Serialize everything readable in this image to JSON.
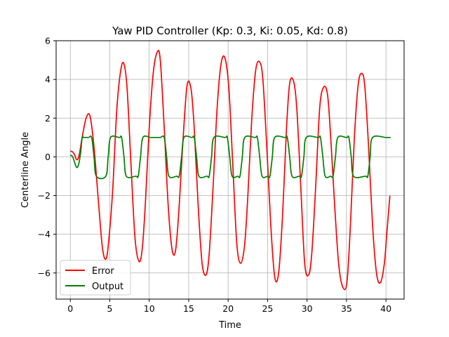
{
  "chart_data": {
    "type": "line",
    "title": "Yaw PID Controller (Kp: 0.3, Ki: 0.05, Kd: 0.8)",
    "xlabel": "Time",
    "ylabel": "Centerline Angle",
    "xlim": [
      -1.8,
      42.3
    ],
    "ylim": [
      -7.35,
      6.0
    ],
    "xticks": [
      0,
      5,
      10,
      15,
      20,
      25,
      30,
      35,
      40
    ],
    "yticks": [
      -6,
      -4,
      -2,
      0,
      2,
      4,
      6
    ],
    "xtick_labels": [
      "0",
      "5",
      "10",
      "15",
      "20",
      "25",
      "30",
      "35",
      "40"
    ],
    "ytick_labels": [
      "−6",
      "−4",
      "−2",
      "0",
      "2",
      "4",
      "6"
    ],
    "grid": true,
    "legend_position": "lower-left",
    "series": [
      {
        "name": "Error",
        "color": "#ff0000",
        "x": [
          0.0,
          0.3,
          0.55,
          0.8,
          1.1,
          1.5,
          2.0,
          2.5,
          3.0,
          3.6,
          4.1,
          4.6,
          5.05,
          5.4,
          5.9,
          6.4,
          6.8,
          7.2,
          7.7,
          8.2,
          8.7,
          9.1,
          9.5,
          10.0,
          10.5,
          11.0,
          11.4,
          11.9,
          12.4,
          12.9,
          13.35,
          13.8,
          14.3,
          14.8,
          15.3,
          15.7,
          16.2,
          16.7,
          17.2,
          17.6,
          18.1,
          18.6,
          19.1,
          19.6,
          20.1,
          20.6,
          21.1,
          21.6,
          22.1,
          22.5,
          23.0,
          23.5,
          24.0,
          24.4,
          24.9,
          25.4,
          25.9,
          26.4,
          26.9,
          27.4,
          27.8,
          28.3,
          28.7,
          29.2,
          29.7,
          30.2,
          30.6,
          31.1,
          31.6,
          32.1,
          32.6,
          33.0,
          33.5,
          34.0,
          34.5,
          35.05,
          35.5,
          36.0,
          36.5,
          37.0,
          37.35,
          37.8,
          38.3,
          38.8,
          39.3,
          39.8,
          40.1,
          40.5
        ],
        "y": [
          0.3,
          0.25,
          0.1,
          -0.15,
          0.05,
          1.0,
          2.0,
          2.1,
          0.5,
          -2.5,
          -4.8,
          -5.2,
          -3.5,
          -1.5,
          2.5,
          4.5,
          4.8,
          3.5,
          -0.5,
          -4.2,
          -5.4,
          -4.8,
          -2.5,
          1.5,
          4.3,
          5.4,
          5.0,
          1.5,
          -2.5,
          -4.8,
          -4.8,
          -2.5,
          1.0,
          3.7,
          3.5,
          1.5,
          -2.5,
          -5.5,
          -6.1,
          -5.0,
          -1.5,
          2.5,
          4.8,
          5.1,
          3.5,
          -0.5,
          -4.5,
          -5.5,
          -4.5,
          -2.0,
          2.0,
          4.5,
          4.9,
          4.0,
          0.5,
          -3.5,
          -6.2,
          -6.0,
          -3.0,
          1.5,
          3.8,
          3.9,
          2.5,
          -1.5,
          -5.5,
          -6.1,
          -5.0,
          -1.5,
          2.5,
          3.6,
          3.2,
          1.0,
          -2.5,
          -5.5,
          -6.7,
          -6.5,
          -3.5,
          1.0,
          3.8,
          4.3,
          3.5,
          0.5,
          -3.5,
          -6.0,
          -6.5,
          -5.5,
          -4.0,
          -2.0
        ]
      },
      {
        "name": "Output",
        "color": "#008000",
        "x": [
          0.0,
          0.3,
          0.55,
          0.8,
          1.05,
          1.3,
          1.5,
          1.7,
          2.3,
          2.7,
          3.0,
          3.3,
          4.5,
          4.8,
          5.1,
          6.2,
          6.5,
          6.8,
          7.1,
          8.3,
          8.6,
          8.9,
          9.2,
          10.2,
          10.5,
          10.8,
          11.1,
          11.4,
          11.9,
          12.2,
          12.5,
          13.5,
          13.8,
          14.1,
          14.4,
          15.4,
          15.7,
          16.0,
          16.3,
          17.3,
          17.6,
          17.9,
          18.2,
          19.6,
          19.9,
          20.2,
          20.5,
          21.2,
          21.5,
          21.8,
          22.1,
          23.4,
          23.7,
          24.0,
          24.3,
          25.0,
          25.3,
          25.6,
          25.9,
          27.2,
          27.5,
          27.8,
          28.1,
          29.0,
          29.3,
          29.6,
          29.9,
          31.4,
          31.7,
          32.0,
          32.3,
          33.0,
          33.3,
          33.6,
          33.9,
          35.0,
          35.3,
          35.6,
          35.9,
          37.4,
          37.7,
          38.0,
          38.3,
          40.0,
          40.3,
          40.6
        ],
        "y": [
          0.1,
          0.0,
          -0.3,
          -0.55,
          -0.4,
          0.2,
          1.0,
          1.0,
          1.0,
          1.0,
          0.0,
          -1.0,
          -1.0,
          0.0,
          1.0,
          1.0,
          1.0,
          0.0,
          -1.0,
          -1.0,
          -1.0,
          0.0,
          1.0,
          1.0,
          1.0,
          1.0,
          1.0,
          1.0,
          1.0,
          0.0,
          -1.0,
          -1.0,
          -1.0,
          0.0,
          1.0,
          1.0,
          1.0,
          0.0,
          -1.0,
          -1.0,
          -1.0,
          0.0,
          1.0,
          1.0,
          1.0,
          0.0,
          -1.0,
          -1.0,
          -1.0,
          0.0,
          1.0,
          1.0,
          1.0,
          0.0,
          -1.0,
          -1.0,
          -1.0,
          0.0,
          1.0,
          1.0,
          1.0,
          0.0,
          -1.0,
          -1.0,
          -1.0,
          0.0,
          1.0,
          1.0,
          1.0,
          0.0,
          -1.0,
          -1.0,
          -1.0,
          0.0,
          1.0,
          1.0,
          1.0,
          0.0,
          -1.0,
          -1.0,
          -1.0,
          0.0,
          1.0,
          1.0,
          1.0,
          1.0
        ]
      }
    ]
  }
}
